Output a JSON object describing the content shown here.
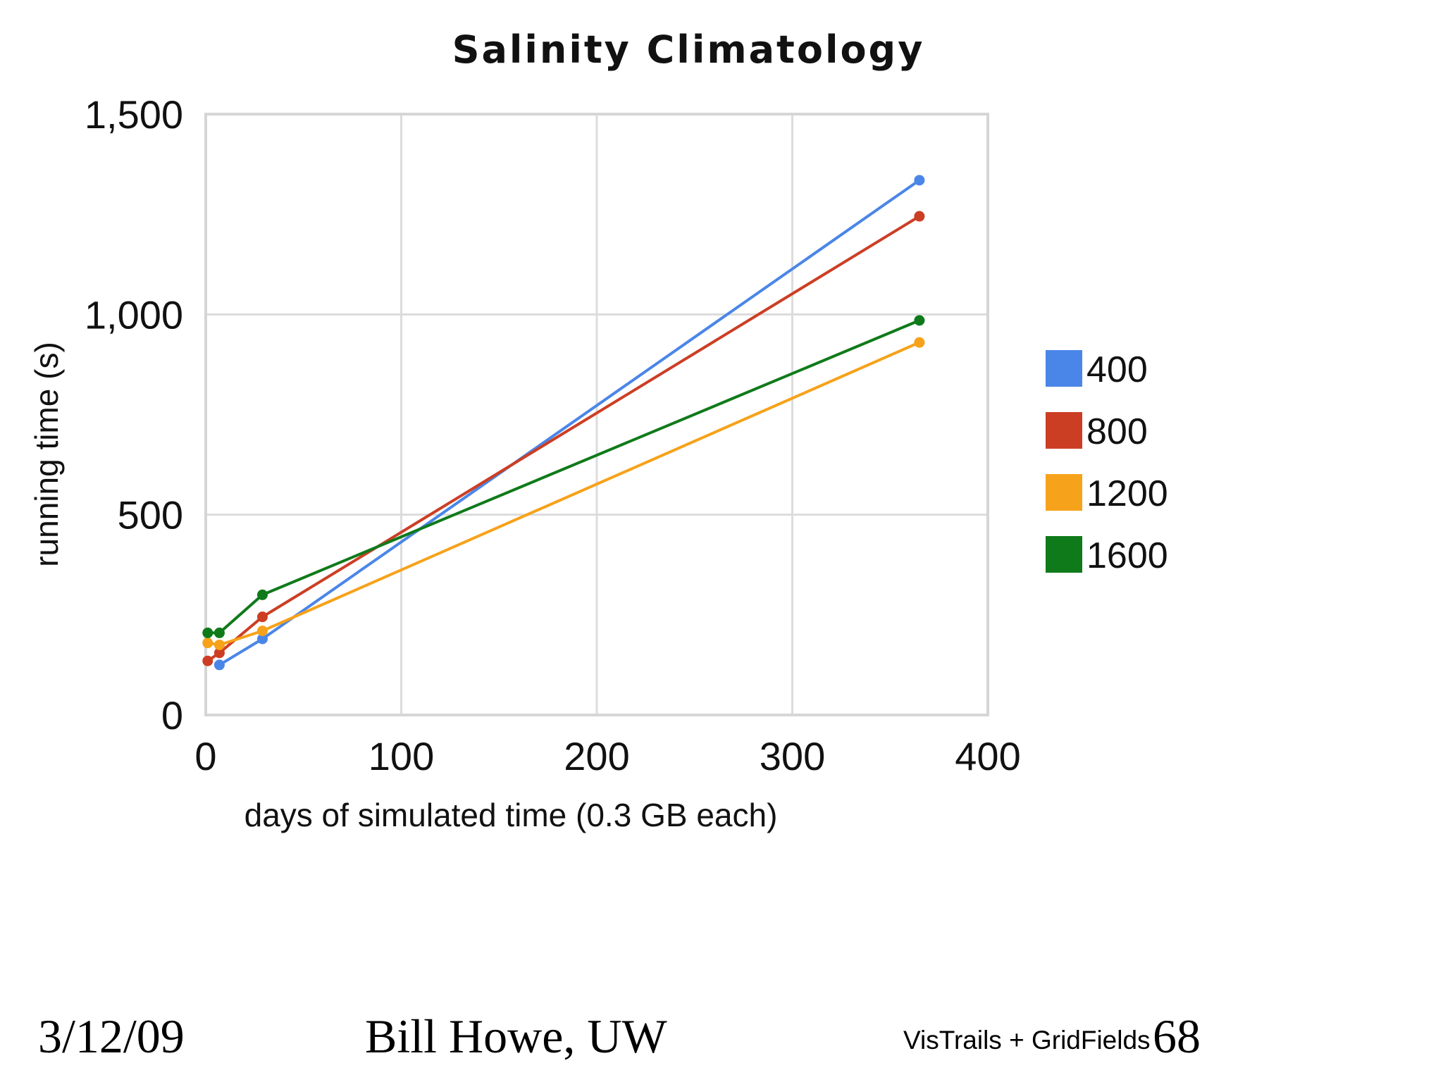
{
  "chart_data": {
    "type": "line",
    "title": "Salinity Climatology",
    "xlabel": "days of simulated time (0.3 GB each)",
    "ylabel": "running time (s)",
    "xlim": [
      0,
      400
    ],
    "ylim": [
      0,
      1500
    ],
    "x_ticks": [
      {
        "value": 0,
        "label": "0"
      },
      {
        "value": 100,
        "label": "100"
      },
      {
        "value": 200,
        "label": "200"
      },
      {
        "value": 300,
        "label": "300"
      },
      {
        "value": 400,
        "label": "400"
      }
    ],
    "y_ticks": [
      {
        "value": 0,
        "label": "0"
      },
      {
        "value": 500,
        "label": "500"
      },
      {
        "value": 1000,
        "label": "1,000"
      },
      {
        "value": 1500,
        "label": "1,500"
      }
    ],
    "grid": true,
    "legend_position": "right",
    "series": [
      {
        "name": "400",
        "color": "#4a86e8",
        "points": [
          [
            7,
            125
          ],
          [
            29,
            190
          ],
          [
            365,
            1335
          ]
        ]
      },
      {
        "name": "800",
        "color": "#cc3e24",
        "points": [
          [
            1,
            135
          ],
          [
            7,
            155
          ],
          [
            29,
            245
          ],
          [
            365,
            1245
          ]
        ]
      },
      {
        "name": "1200",
        "color": "#f6a21a",
        "points": [
          [
            1,
            180
          ],
          [
            7,
            175
          ],
          [
            29,
            210
          ],
          [
            365,
            930
          ]
        ]
      },
      {
        "name": "1600",
        "color": "#0f7a1a",
        "points": [
          [
            1,
            205
          ],
          [
            7,
            205
          ],
          [
            29,
            300
          ],
          [
            365,
            985
          ]
        ]
      }
    ]
  },
  "footer": {
    "date": "3/12/09",
    "author": "Bill Howe, UW",
    "project": "VisTrails + GridFields",
    "page_number": "68"
  }
}
